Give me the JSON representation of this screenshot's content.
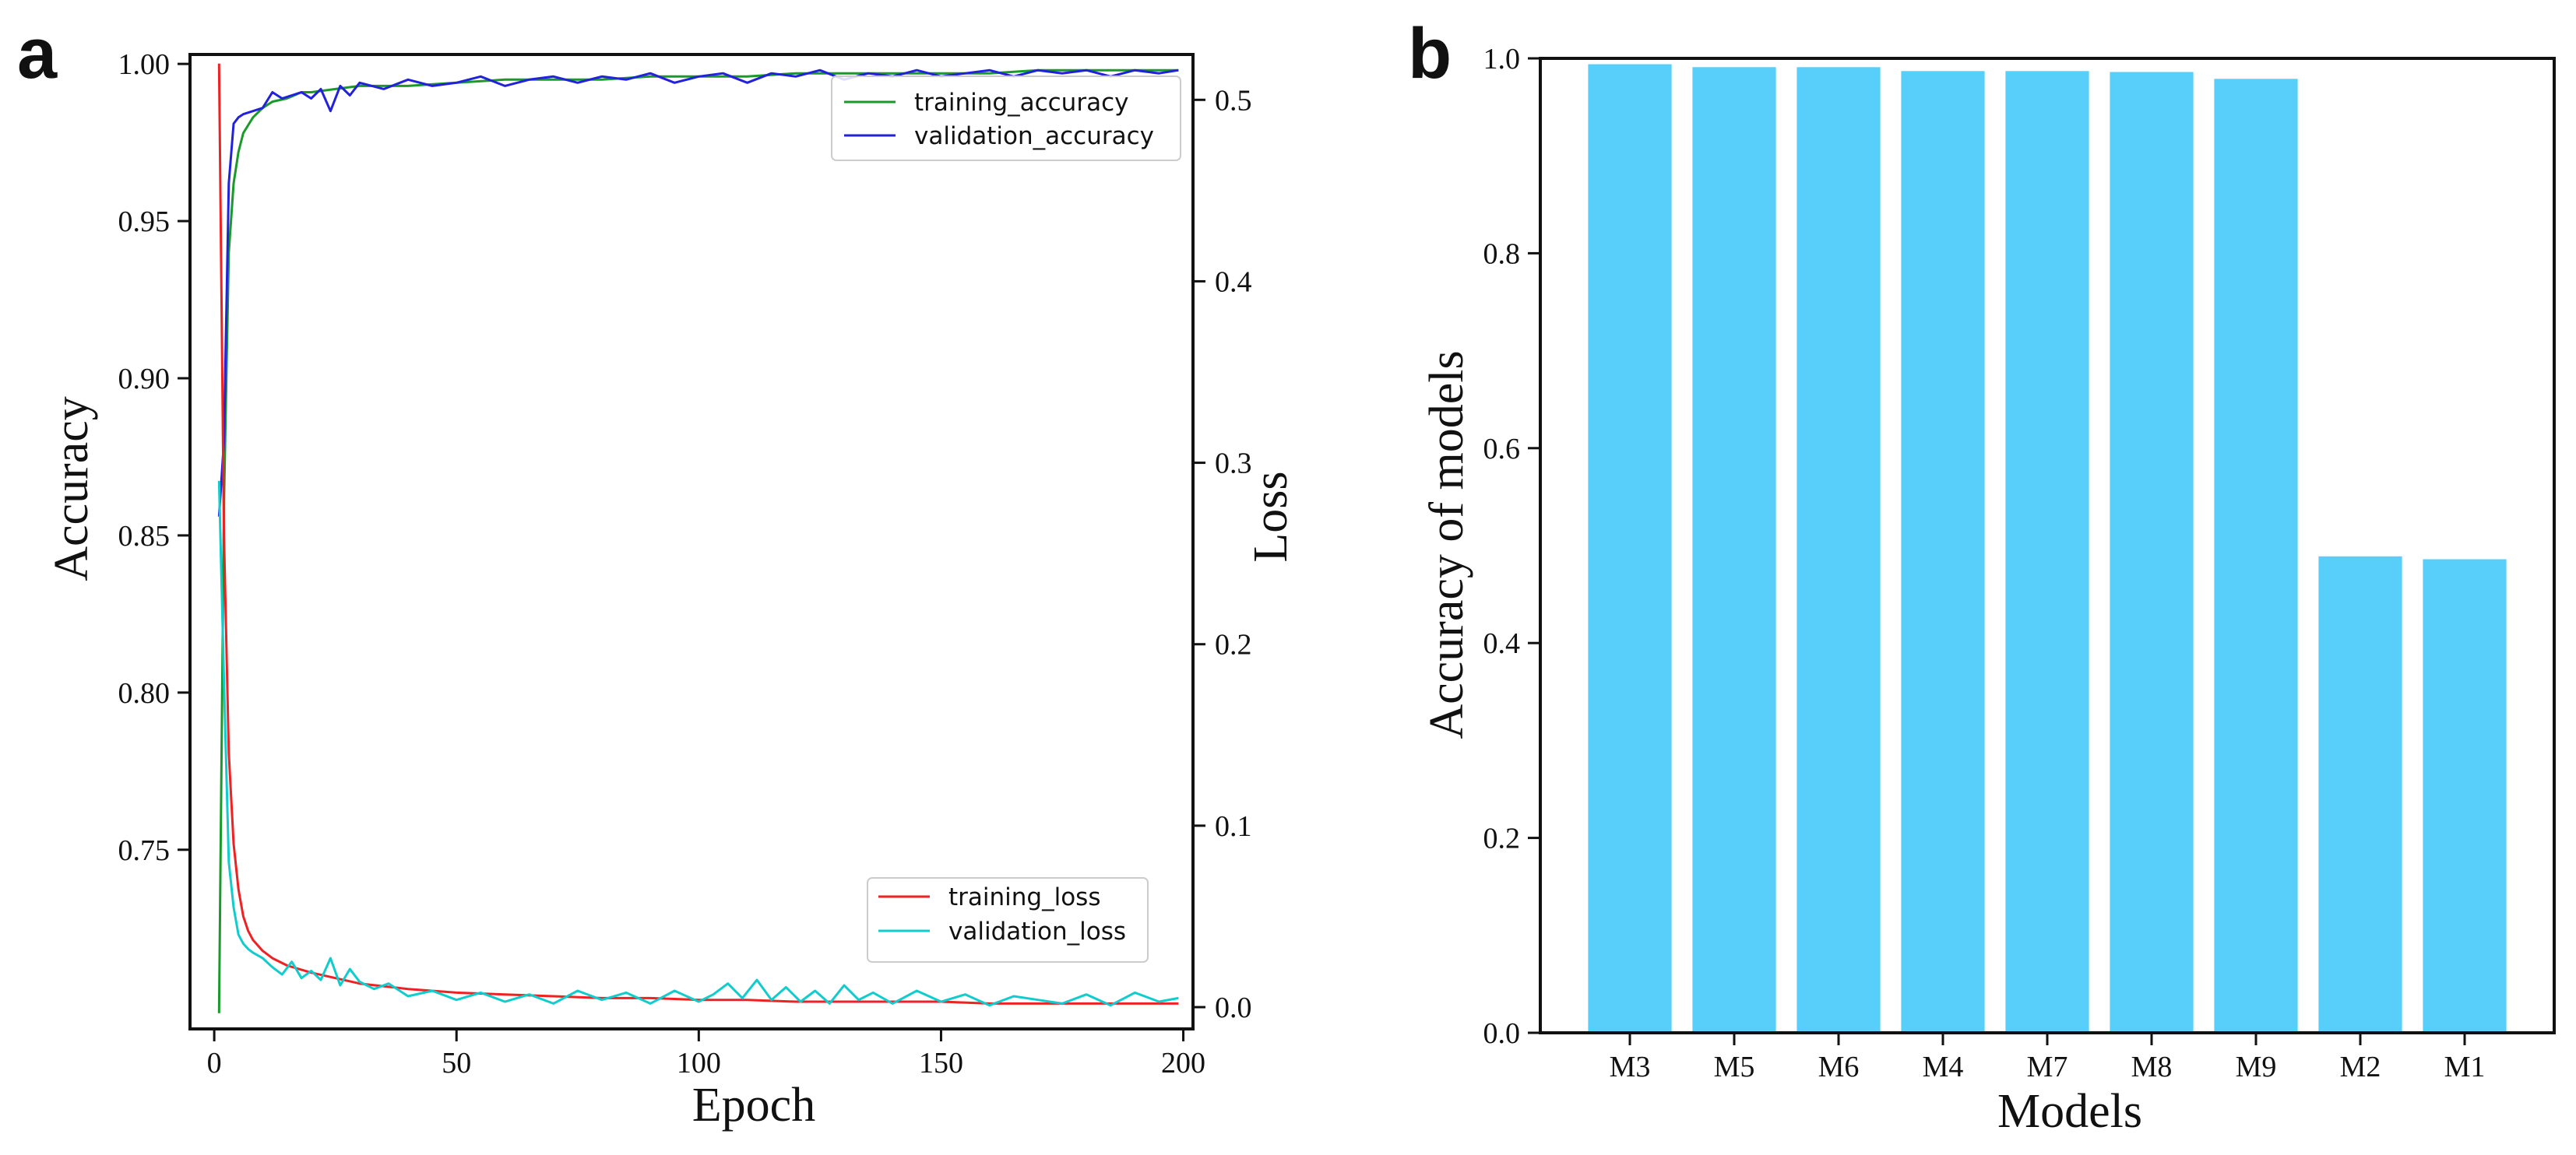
{
  "chart_data": [
    {
      "panel": "a",
      "type": "line",
      "xlabel": "Epoch",
      "ylabel_left": "Accuracy",
      "ylabel_right": "Loss",
      "xlim": [
        -5,
        202
      ],
      "ylim_left": [
        0.693,
        1.003
      ],
      "ylim_right": [
        -0.012,
        0.525
      ],
      "xticks": [
        0,
        50,
        100,
        150,
        200
      ],
      "xtick_labels": [
        "0",
        "50",
        "100",
        "150",
        "200"
      ],
      "yticks_left": [
        0.75,
        0.8,
        0.85,
        0.9,
        0.95,
        1.0
      ],
      "ytick_labels_left": [
        "0.75",
        "0.80",
        "0.85",
        "0.90",
        "0.95",
        "1.00"
      ],
      "yticks_right": [
        0.0,
        0.1,
        0.2,
        0.3,
        0.4,
        0.5
      ],
      "ytick_labels_right": [
        "0.0",
        "0.1",
        "0.2",
        "0.3",
        "0.4",
        "0.5"
      ],
      "series": [
        {
          "name": "training_accuracy",
          "axis": "left",
          "color": "#1a9a2a",
          "x": [
            1,
            2,
            3,
            4,
            5,
            6,
            8,
            10,
            12,
            15,
            18,
            20,
            25,
            30,
            40,
            50,
            60,
            70,
            80,
            90,
            100,
            110,
            120,
            130,
            140,
            150,
            160,
            170,
            180,
            190,
            199
          ],
          "y": [
            0.698,
            0.86,
            0.94,
            0.962,
            0.972,
            0.978,
            0.983,
            0.986,
            0.988,
            0.989,
            0.991,
            0.991,
            0.992,
            0.993,
            0.993,
            0.994,
            0.995,
            0.995,
            0.995,
            0.996,
            0.996,
            0.996,
            0.997,
            0.997,
            0.997,
            0.997,
            0.997,
            0.998,
            0.998,
            0.998,
            0.998
          ]
        },
        {
          "name": "validation_accuracy",
          "axis": "left",
          "color": "#2222dd",
          "x": [
            1,
            2,
            3,
            4,
            5,
            6,
            8,
            10,
            12,
            14,
            16,
            18,
            20,
            22,
            24,
            26,
            28,
            30,
            35,
            40,
            45,
            50,
            55,
            60,
            65,
            70,
            75,
            80,
            85,
            90,
            95,
            100,
            105,
            110,
            115,
            120,
            125,
            130,
            135,
            140,
            145,
            150,
            155,
            160,
            165,
            170,
            175,
            180,
            185,
            190,
            195,
            199
          ],
          "y": [
            0.856,
            0.88,
            0.962,
            0.981,
            0.983,
            0.984,
            0.985,
            0.986,
            0.991,
            0.989,
            0.99,
            0.991,
            0.989,
            0.992,
            0.985,
            0.993,
            0.99,
            0.994,
            0.992,
            0.995,
            0.993,
            0.994,
            0.996,
            0.993,
            0.995,
            0.996,
            0.994,
            0.996,
            0.995,
            0.997,
            0.994,
            0.996,
            0.997,
            0.994,
            0.997,
            0.996,
            0.998,
            0.995,
            0.997,
            0.996,
            0.998,
            0.996,
            0.997,
            0.998,
            0.996,
            0.998,
            0.997,
            0.998,
            0.996,
            0.998,
            0.997,
            0.998
          ]
        },
        {
          "name": "training_loss",
          "axis": "right",
          "color": "#ee2222",
          "x": [
            1,
            2,
            3,
            4,
            5,
            6,
            7,
            8,
            10,
            12,
            15,
            20,
            25,
            30,
            40,
            50,
            60,
            70,
            80,
            90,
            100,
            110,
            120,
            130,
            140,
            150,
            160,
            170,
            180,
            190,
            199
          ],
          "y": [
            0.52,
            0.26,
            0.14,
            0.09,
            0.065,
            0.05,
            0.042,
            0.037,
            0.031,
            0.027,
            0.023,
            0.019,
            0.016,
            0.013,
            0.01,
            0.008,
            0.007,
            0.006,
            0.005,
            0.005,
            0.004,
            0.004,
            0.003,
            0.003,
            0.003,
            0.003,
            0.002,
            0.002,
            0.002,
            0.002,
            0.002
          ]
        },
        {
          "name": "validation_loss",
          "axis": "right",
          "color": "#11cccc",
          "x": [
            1,
            2,
            3,
            4,
            5,
            6,
            7,
            8,
            10,
            12,
            14,
            16,
            18,
            20,
            22,
            24,
            26,
            28,
            30,
            33,
            36,
            40,
            45,
            50,
            55,
            60,
            65,
            70,
            75,
            80,
            85,
            90,
            95,
            100,
            103,
            106,
            109,
            112,
            115,
            118,
            121,
            124,
            127,
            130,
            133,
            136,
            140,
            145,
            150,
            155,
            160,
            165,
            170,
            175,
            180,
            185,
            190,
            195,
            199
          ],
          "y": [
            0.29,
            0.18,
            0.08,
            0.055,
            0.04,
            0.035,
            0.032,
            0.03,
            0.027,
            0.022,
            0.018,
            0.025,
            0.016,
            0.02,
            0.015,
            0.027,
            0.012,
            0.021,
            0.014,
            0.01,
            0.013,
            0.006,
            0.009,
            0.004,
            0.008,
            0.003,
            0.007,
            0.002,
            0.009,
            0.004,
            0.008,
            0.002,
            0.009,
            0.003,
            0.007,
            0.013,
            0.005,
            0.015,
            0.004,
            0.011,
            0.003,
            0.009,
            0.002,
            0.012,
            0.004,
            0.008,
            0.002,
            0.009,
            0.003,
            0.007,
            0.001,
            0.006,
            0.004,
            0.002,
            0.007,
            0.001,
            0.008,
            0.003,
            0.005
          ]
        }
      ],
      "legends": {
        "top_right": [
          "training_accuracy",
          "validation_accuracy"
        ],
        "bottom_right": [
          "training_loss",
          "validation_loss"
        ]
      }
    },
    {
      "panel": "b",
      "type": "bar",
      "categories": [
        "M3",
        "M5",
        "M6",
        "M4",
        "M7",
        "M8",
        "M9",
        "M2",
        "M1"
      ],
      "values": [
        0.994,
        0.991,
        0.991,
        0.987,
        0.987,
        0.986,
        0.979,
        0.489,
        0.486
      ],
      "xlabel": "Models",
      "ylabel": "Accuracy of models",
      "ylim": [
        0.0,
        1.0
      ],
      "yticks": [
        0.0,
        0.2,
        0.4,
        0.6,
        0.8,
        1.0
      ],
      "ytick_labels": [
        "0.0",
        "0.2",
        "0.4",
        "0.6",
        "0.8",
        "1.0"
      ],
      "bar_color": "#58cffb"
    }
  ]
}
